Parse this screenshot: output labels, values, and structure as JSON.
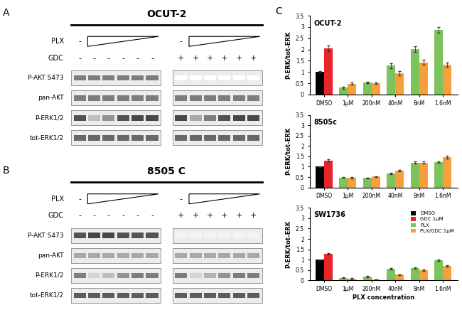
{
  "chart_panel": "C",
  "blots": [
    {
      "panel": "A",
      "title": "OCUT-2",
      "treatments": [
        {
          "name": "PLX",
          "lanes": [
            [
              "-",
              null,
              null,
              null,
              null,
              null
            ],
            [
              "-",
              null,
              null,
              null,
              null,
              null
            ]
          ]
        },
        {
          "name": "GDC",
          "lanes": [
            [
              "-",
              "-",
              "-",
              "-",
              "-",
              "-"
            ],
            [
              "+",
              "+",
              "+",
              "+",
              "+",
              "+"
            ]
          ]
        }
      ],
      "rows": [
        {
          "name": "P-AKT S473",
          "bands": [
            [
              0.6,
              0.6,
              0.6,
              0.6,
              0.6,
              0.6
            ],
            [
              0,
              0,
              0,
              0,
              0,
              0
            ]
          ]
        },
        {
          "name": "pan-AKT",
          "bands": [
            [
              0.6,
              0.6,
              0.6,
              0.6,
              0.6,
              0.6
            ],
            [
              0.6,
              0.6,
              0.6,
              0.6,
              0.6,
              0.6
            ]
          ]
        },
        {
          "name": "P-ERK1/2",
          "bands": [
            [
              0.8,
              0.3,
              0.5,
              0.8,
              0.85,
              0.85
            ],
            [
              0.85,
              0.4,
              0.6,
              0.8,
              0.85,
              0.85
            ]
          ]
        },
        {
          "name": "tot-ERK1/2",
          "bands": [
            [
              0.7,
              0.7,
              0.7,
              0.7,
              0.7,
              0.7
            ],
            [
              0.7,
              0.7,
              0.7,
              0.7,
              0.7,
              0.7
            ]
          ]
        }
      ]
    },
    {
      "panel": "B",
      "title": "8505 C",
      "treatments": [
        {
          "name": "PLX",
          "lanes": [
            [
              "-",
              null,
              null,
              null,
              null,
              null
            ],
            [
              "-",
              null,
              null,
              null,
              null,
              null
            ]
          ]
        },
        {
          "name": "GDC",
          "lanes": [
            [
              "-",
              "-",
              "-",
              "-",
              "-",
              "-"
            ],
            [
              "+",
              "+",
              "+",
              "+",
              "+",
              "+"
            ]
          ]
        }
      ],
      "rows": [
        {
          "name": "P-AKT S473",
          "bands": [
            [
              0.8,
              0.85,
              0.85,
              0.8,
              0.8,
              0.8
            ],
            [
              0.05,
              0.05,
              0.05,
              0.05,
              0.05,
              0.05
            ]
          ]
        },
        {
          "name": "pan-AKT",
          "bands": [
            [
              0.4,
              0.4,
              0.4,
              0.4,
              0.4,
              0.4
            ],
            [
              0.4,
              0.4,
              0.4,
              0.4,
              0.4,
              0.4
            ]
          ]
        },
        {
          "name": "P-ERK1/2",
          "bands": [
            [
              0.6,
              0.2,
              0.3,
              0.5,
              0.6,
              0.6
            ],
            [
              0.6,
              0.2,
              0.35,
              0.5,
              0.6,
              0.6
            ]
          ]
        },
        {
          "name": "tot-ERK1/2",
          "bands": [
            [
              0.75,
              0.75,
              0.75,
              0.75,
              0.75,
              0.75
            ],
            [
              0.75,
              0.75,
              0.75,
              0.75,
              0.75,
              0.75
            ]
          ]
        }
      ]
    }
  ],
  "chart_data": [
    {
      "type": "bar",
      "title": "OCUT-2",
      "y_label": "P-ERK/tot-ERK",
      "categories": [
        "DMSO",
        "1µM",
        "200nM",
        "40nM",
        "8nM",
        "1.6nM"
      ],
      "ylim": [
        0,
        3.5
      ],
      "yticks": [
        0,
        0.5,
        1,
        1.5,
        2,
        2.5,
        3,
        3.5
      ],
      "series": [
        {
          "name": "DMSO",
          "color": "#000000",
          "values": [
            1.0,
            null,
            null,
            null,
            null,
            null
          ],
          "errors": [
            0.03,
            null,
            null,
            null,
            null,
            null
          ]
        },
        {
          "name": "GDC 1µM",
          "color": "#e8262a",
          "values": [
            2.05,
            null,
            null,
            null,
            null,
            null
          ],
          "errors": [
            0.12,
            null,
            null,
            null,
            null,
            null
          ]
        },
        {
          "name": "PLX",
          "color": "#7dc35b",
          "values": [
            null,
            0.3,
            0.52,
            1.28,
            2.02,
            2.88
          ],
          "errors": [
            null,
            0.04,
            0.03,
            0.1,
            0.12,
            0.12
          ]
        },
        {
          "name": "PLX/GDC 1µM",
          "color": "#f5a03c",
          "values": [
            null,
            0.48,
            0.5,
            0.95,
            1.43,
            1.33
          ],
          "errors": [
            null,
            0.04,
            0.03,
            0.1,
            0.1,
            0.1
          ]
        }
      ]
    },
    {
      "type": "bar",
      "title": "8505c",
      "y_label": "P-ERK/tot-ERK",
      "categories": [
        "DMSO",
        "1µM",
        "200nM",
        "40nM",
        "8nM",
        "1.6nM"
      ],
      "ylim": [
        0,
        3.5
      ],
      "yticks": [
        0,
        0.5,
        1,
        1.5,
        2,
        2.5,
        3,
        3.5
      ],
      "series": [
        {
          "name": "DMSO",
          "color": "#000000",
          "values": [
            1.0,
            null,
            null,
            null,
            null,
            null
          ],
          "errors": [
            0.03,
            null,
            null,
            null,
            null,
            null
          ]
        },
        {
          "name": "GDC 1µM",
          "color": "#e8262a",
          "values": [
            1.3,
            null,
            null,
            null,
            null,
            null
          ],
          "errors": [
            0.05,
            null,
            null,
            null,
            null,
            null
          ]
        },
        {
          "name": "PLX",
          "color": "#7dc35b",
          "values": [
            null,
            0.48,
            0.45,
            0.68,
            1.2,
            1.23
          ],
          "errors": [
            null,
            0.03,
            0.03,
            0.04,
            0.04,
            0.04
          ]
        },
        {
          "name": "PLX/GDC 1µM",
          "color": "#f5a03c",
          "values": [
            null,
            0.47,
            0.52,
            0.82,
            1.2,
            1.47
          ],
          "errors": [
            null,
            0.03,
            0.03,
            0.04,
            0.05,
            0.06
          ]
        }
      ]
    },
    {
      "type": "bar",
      "title": "SW1736",
      "y_label": "P-ERK/tot-ERK",
      "x_label": "PLX concentration",
      "categories": [
        "DMSO",
        "1µM",
        "200nM",
        "40nM",
        "8nM",
        "1.6nM"
      ],
      "ylim": [
        0,
        3.5
      ],
      "yticks": [
        0,
        0.5,
        1,
        1.5,
        2,
        2.5,
        3,
        3.5
      ],
      "legend": "upper right",
      "series": [
        {
          "name": "DMSO",
          "color": "#000000",
          "values": [
            1.0,
            null,
            null,
            null,
            null,
            null
          ],
          "errors": [
            0.02,
            null,
            null,
            null,
            null,
            null
          ]
        },
        {
          "name": "GDC 1µM",
          "color": "#e8262a",
          "values": [
            1.28,
            null,
            null,
            null,
            null,
            null
          ],
          "errors": [
            0.03,
            null,
            null,
            null,
            null,
            null
          ]
        },
        {
          "name": "PLX",
          "color": "#7dc35b",
          "values": [
            null,
            0.12,
            0.18,
            0.55,
            0.6,
            0.97
          ],
          "errors": [
            null,
            0.02,
            0.02,
            0.03,
            0.03,
            0.03
          ]
        },
        {
          "name": "PLX/GDC 1µM",
          "color": "#f5a03c",
          "values": [
            null,
            0.08,
            0.05,
            0.28,
            0.48,
            0.7
          ],
          "errors": [
            null,
            0.02,
            0.01,
            0.02,
            0.03,
            0.03
          ]
        }
      ]
    }
  ]
}
